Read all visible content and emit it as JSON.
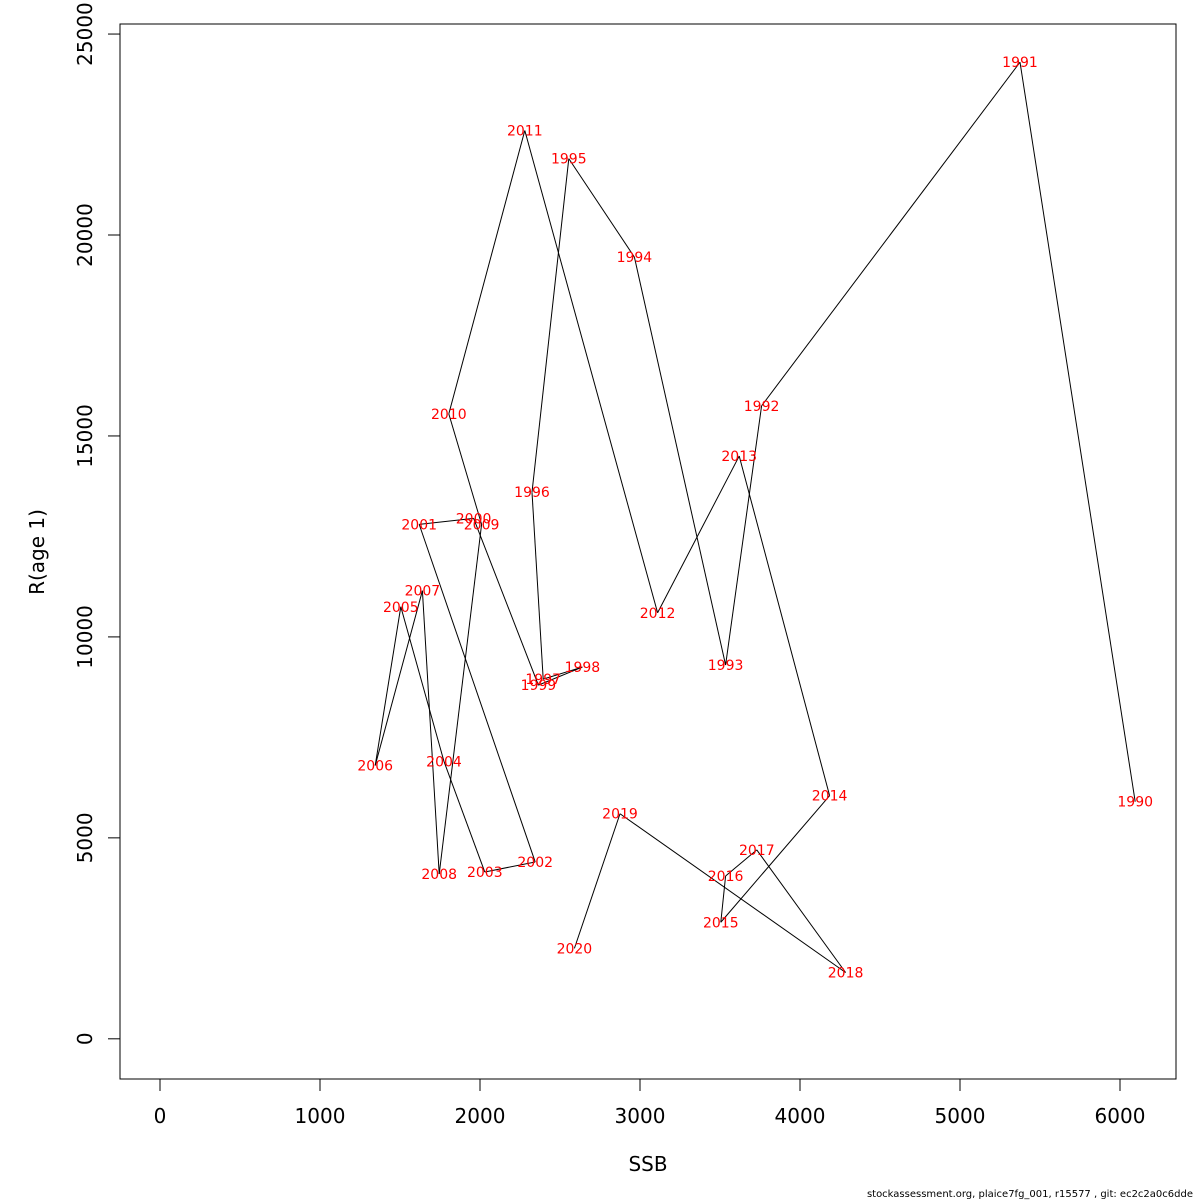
{
  "chart_data": {
    "type": "line",
    "xlabel": "SSB",
    "ylabel": "R(age 1)",
    "xlim": [
      -250,
      6350
    ],
    "ylim": [
      -1000,
      25250
    ],
    "x_ticks": [
      0,
      1000,
      2000,
      3000,
      4000,
      5000,
      6000
    ],
    "y_ticks": [
      0,
      5000,
      10000,
      15000,
      20000,
      25000
    ],
    "label_color": "#ff0000",
    "line_color": "#000000",
    "grid": false,
    "points": [
      {
        "year": "1990",
        "x": 6095,
        "y": 5900
      },
      {
        "year": "1991",
        "x": 5375,
        "y": 24300
      },
      {
        "year": "1992",
        "x": 3760,
        "y": 15750
      },
      {
        "year": "1993",
        "x": 3535,
        "y": 9300
      },
      {
        "year": "1994",
        "x": 2965,
        "y": 19450
      },
      {
        "year": "1995",
        "x": 2555,
        "y": 21900
      },
      {
        "year": "1996",
        "x": 2325,
        "y": 13600
      },
      {
        "year": "1997",
        "x": 2395,
        "y": 8950
      },
      {
        "year": "1998",
        "x": 2640,
        "y": 9250
      },
      {
        "year": "1999",
        "x": 2365,
        "y": 8800
      },
      {
        "year": "2000",
        "x": 1960,
        "y": 12950
      },
      {
        "year": "2001",
        "x": 1620,
        "y": 12800
      },
      {
        "year": "2002",
        "x": 2345,
        "y": 4400
      },
      {
        "year": "2003",
        "x": 2030,
        "y": 4150
      },
      {
        "year": "2004",
        "x": 1775,
        "y": 6900
      },
      {
        "year": "2005",
        "x": 1505,
        "y": 10750
      },
      {
        "year": "2006",
        "x": 1345,
        "y": 6800
      },
      {
        "year": "2007",
        "x": 1640,
        "y": 11150
      },
      {
        "year": "2008",
        "x": 1745,
        "y": 4100
      },
      {
        "year": "2009",
        "x": 2010,
        "y": 12800
      },
      {
        "year": "2010",
        "x": 1805,
        "y": 15550
      },
      {
        "year": "2011",
        "x": 2280,
        "y": 22600
      },
      {
        "year": "2012",
        "x": 3110,
        "y": 10600
      },
      {
        "year": "2013",
        "x": 3620,
        "y": 14500
      },
      {
        "year": "2014",
        "x": 4185,
        "y": 6050
      },
      {
        "year": "2015",
        "x": 3505,
        "y": 2900
      },
      {
        "year": "2016",
        "x": 3535,
        "y": 4050
      },
      {
        "year": "2017",
        "x": 3730,
        "y": 4700
      },
      {
        "year": "2018",
        "x": 4285,
        "y": 1650
      },
      {
        "year": "2019",
        "x": 2875,
        "y": 5600
      },
      {
        "year": "2020",
        "x": 2590,
        "y": 2250
      }
    ]
  },
  "footer": "stockassessment.org, plaice7fg_001, r15577 , git: ec2c2a0c6dde"
}
